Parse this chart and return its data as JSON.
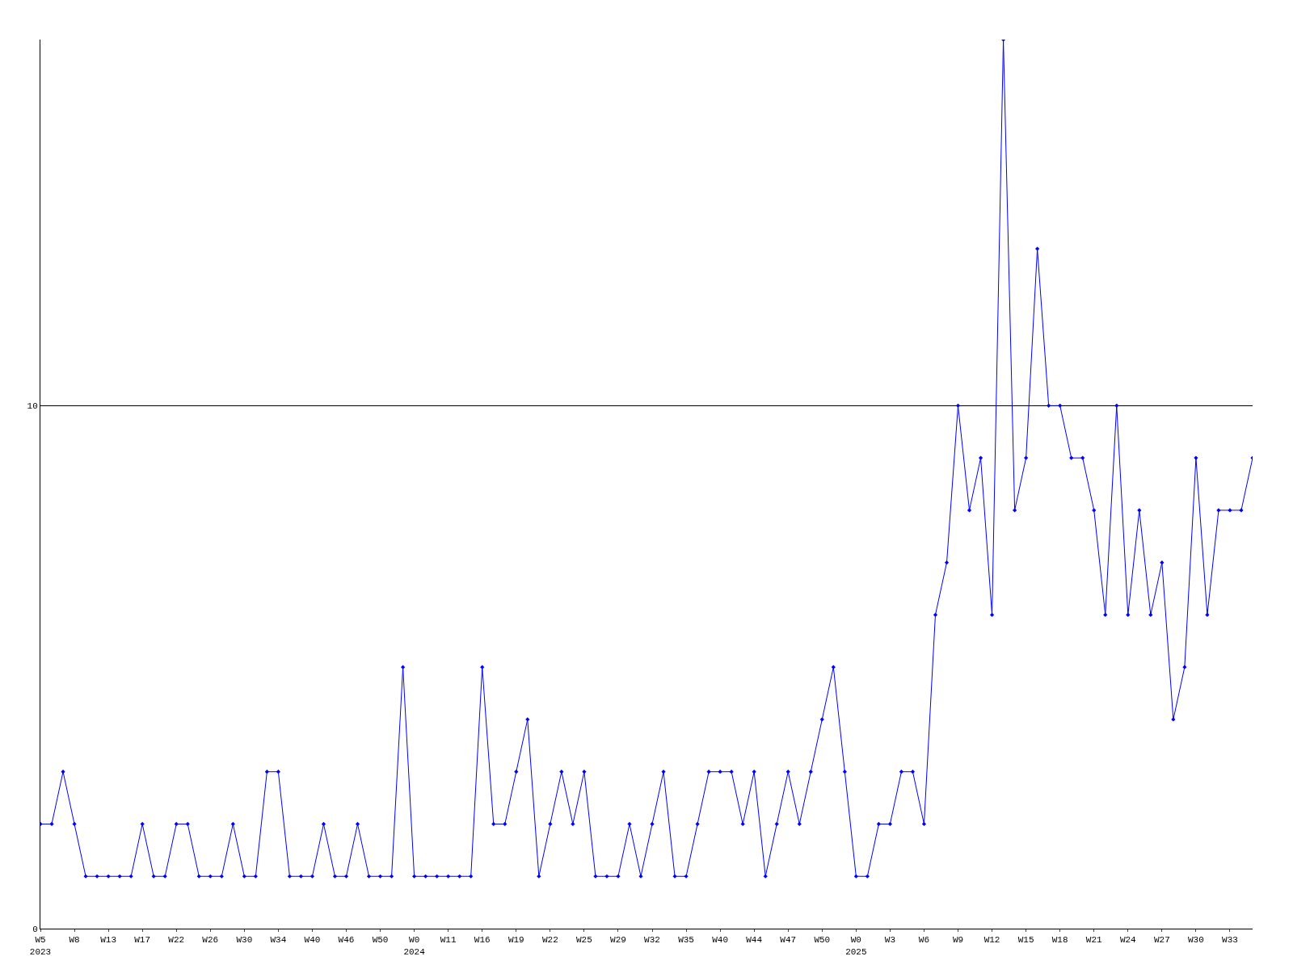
{
  "chart_data": {
    "type": "line",
    "categories": [
      "W5\n2023",
      null,
      null,
      "W8",
      null,
      null,
      "W13",
      null,
      null,
      "W17",
      null,
      null,
      "W22",
      null,
      null,
      "W26",
      null,
      null,
      "W30",
      null,
      null,
      "W34",
      null,
      null,
      "W40",
      null,
      null,
      "W46",
      null,
      null,
      "W50",
      null,
      null,
      "W0\n2024",
      null,
      null,
      "W11",
      null,
      null,
      "W16",
      null,
      null,
      "W19",
      null,
      null,
      "W22",
      null,
      null,
      "W25",
      null,
      null,
      "W29",
      null,
      null,
      "W32",
      null,
      null,
      "W35",
      null,
      null,
      "W40",
      null,
      null,
      "W44",
      null,
      null,
      "W47",
      null,
      null,
      "W50",
      null,
      null,
      "W0\n2025",
      null,
      null,
      "W3",
      null,
      null,
      "W6",
      null,
      null,
      "W9",
      null,
      null,
      "W12",
      null,
      null,
      "W15",
      null,
      null,
      "W18",
      null,
      null,
      "W21",
      null,
      null,
      "W24",
      null,
      null,
      "W27",
      null,
      null,
      "W30",
      null,
      null,
      "W33",
      null,
      null
    ],
    "series": [
      {
        "color": "#0000ff",
        "values": [
          2,
          2,
          3,
          2,
          1,
          1,
          1,
          1,
          1,
          2,
          1,
          1,
          2,
          2,
          1,
          1,
          1,
          2,
          1,
          1,
          3,
          3,
          1,
          1,
          1,
          2,
          1,
          1,
          2,
          1,
          1,
          1,
          5,
          1,
          1,
          1,
          1,
          1,
          1,
          5,
          2,
          2,
          3,
          4,
          1,
          2,
          3,
          2,
          3,
          1,
          1,
          1,
          2,
          1,
          2,
          3,
          1,
          1,
          2,
          3,
          3,
          3,
          2,
          3,
          1,
          2,
          3,
          2,
          3,
          4,
          5,
          3,
          1,
          1,
          2,
          2,
          3,
          3,
          2,
          6,
          7,
          10,
          8,
          9,
          6,
          17,
          8,
          9,
          13,
          10,
          10,
          9,
          9,
          8,
          6,
          10,
          6,
          8,
          6,
          7,
          4,
          5,
          9,
          6,
          8,
          8,
          8,
          9
        ]
      }
    ],
    "ylim": [
      0,
      17
    ],
    "yticks": [
      0,
      10
    ],
    "grid": "y",
    "marker": "diamond",
    "line_style": "solid"
  }
}
